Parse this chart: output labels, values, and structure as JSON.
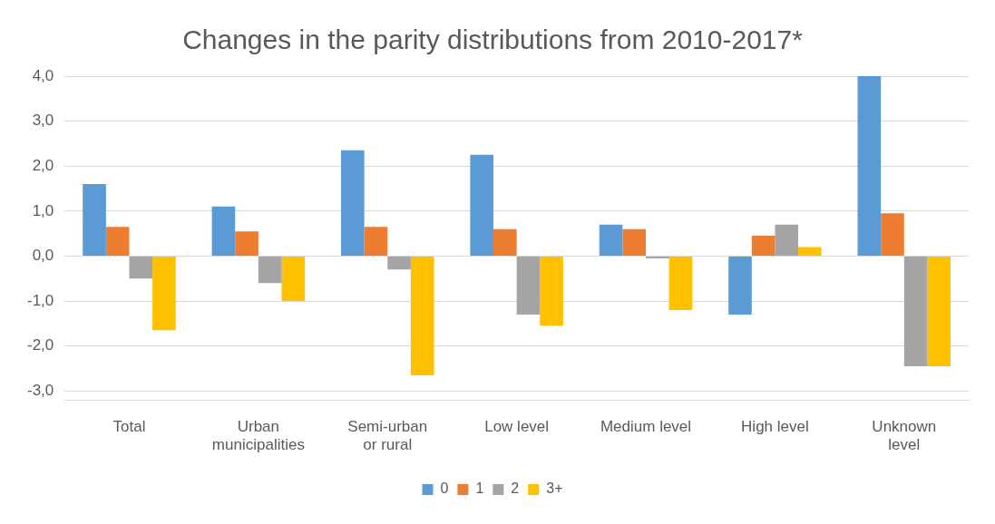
{
  "chart_data": {
    "type": "bar",
    "title": "Changes in the parity distributions from 2010-2017*",
    "categories": [
      "Total",
      "Urban municipalities",
      "Semi-urban or rural",
      "Low level",
      "Medium level",
      "High level",
      "Unknown level"
    ],
    "series": [
      {
        "name": "0",
        "color": "#5b9bd5",
        "values": [
          1.6,
          1.1,
          2.35,
          2.25,
          0.7,
          -1.3,
          4.0
        ]
      },
      {
        "name": "1",
        "color": "#ed7d31",
        "values": [
          0.65,
          0.55,
          0.65,
          0.6,
          0.6,
          0.45,
          0.95
        ]
      },
      {
        "name": "2",
        "color": "#a5a5a5",
        "values": [
          -0.5,
          -0.6,
          -0.3,
          -1.3,
          -0.05,
          0.7,
          -2.45
        ]
      },
      {
        "name": "3+",
        "color": "#ffc000",
        "values": [
          -1.65,
          -1.0,
          -2.65,
          -1.55,
          -1.2,
          0.2,
          -2.45
        ]
      }
    ],
    "ylim": [
      -3.2,
      4
    ],
    "yticks": [
      {
        "value": -3,
        "label": "-3,0"
      },
      {
        "value": -2,
        "label": "-2,0"
      },
      {
        "value": -1,
        "label": "-1,0"
      },
      {
        "value": 0,
        "label": "0,0"
      },
      {
        "value": 1,
        "label": "1,0"
      },
      {
        "value": 2,
        "label": "2,0"
      },
      {
        "value": 3,
        "label": "3,0"
      },
      {
        "value": 4,
        "label": "4,0"
      }
    ],
    "grid": "y",
    "legend": "bottom"
  }
}
